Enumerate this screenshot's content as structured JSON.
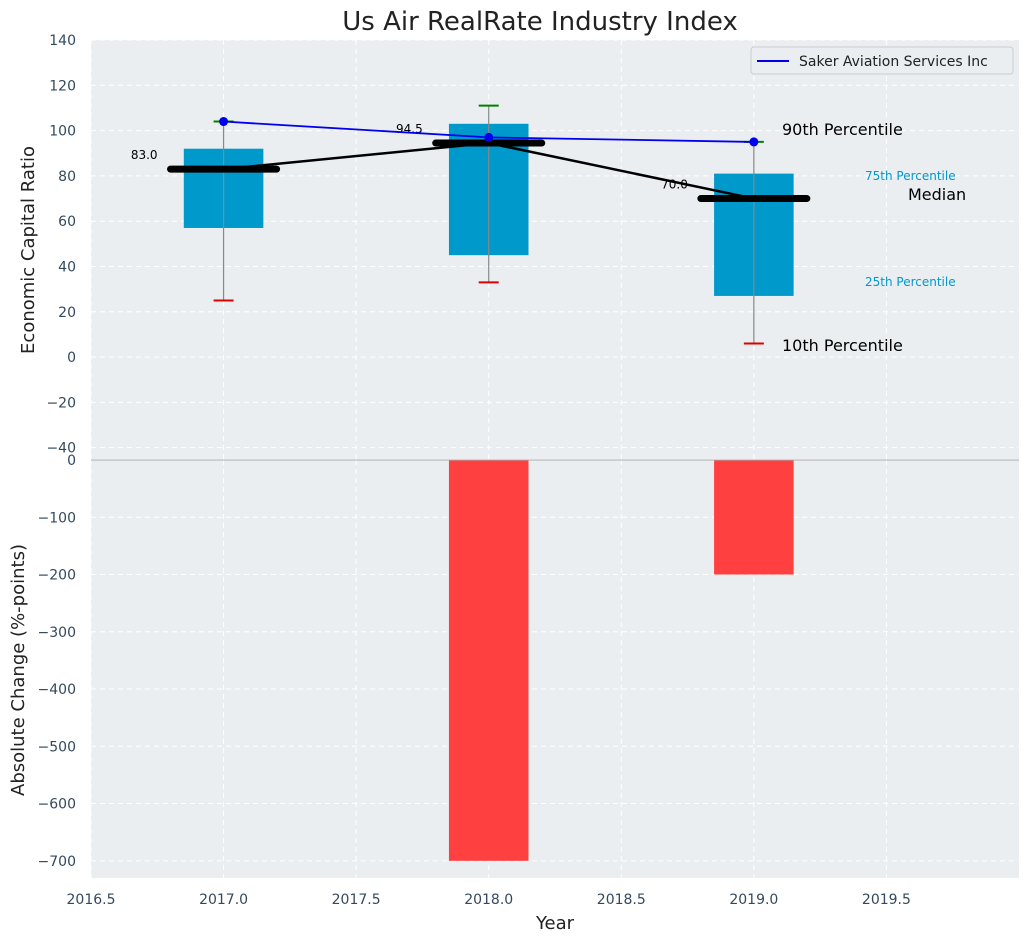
{
  "chart_data": [
    {
      "type": "box-range",
      "title": "Us Air RealRate Industry Index",
      "ylabel": "Economic Capital Ratio",
      "xlim": [
        2016.5,
        2020.0
      ],
      "ylim": [
        -45,
        140
      ],
      "yticks": [
        -40,
        -20,
        0,
        20,
        40,
        60,
        80,
        100,
        120,
        140
      ],
      "categories": [
        2017,
        2018,
        2019
      ],
      "percentile_10": [
        25,
        33,
        6
      ],
      "percentile_25": [
        57,
        45,
        27
      ],
      "median": [
        83.0,
        94.5,
        70.0
      ],
      "percentile_75": [
        92,
        103,
        81
      ],
      "percentile_90": [
        104,
        111,
        95
      ],
      "median_labels": [
        "83.0",
        "94.5",
        "70.0"
      ],
      "series": [
        {
          "name": "Saker Aviation Services Inc",
          "x": [
            2017,
            2018,
            2019
          ],
          "values": [
            104,
            97,
            95
          ],
          "color": "#0000ee"
        }
      ],
      "legend": {
        "position": "top-right",
        "entries": [
          "Saker Aviation Services Inc"
        ]
      },
      "annotations": {
        "p90": "90th Percentile",
        "p75": "75th Percentile",
        "median": "Median",
        "p25": "25th Percentile",
        "p10": "10th Percentile"
      },
      "colors": {
        "box": "#0099cc",
        "median": "#000000",
        "p90_cap": "#008000",
        "p10_cap": "#dd0000",
        "whisker": "#888888",
        "background": "#eaeef0"
      }
    },
    {
      "type": "bar",
      "ylabel": "Absolute Change (%-points)",
      "xlabel": "Year",
      "xlim": [
        2016.5,
        2020.0
      ],
      "ylim": [
        -730,
        0
      ],
      "xticks": [
        "2016.5",
        "2017.0",
        "2017.5",
        "2018.0",
        "2018.5",
        "2019.0",
        "2019.5"
      ],
      "yticks": [
        0,
        -100,
        -200,
        -300,
        -400,
        -500,
        -600,
        -700
      ],
      "x": [
        2018,
        2019
      ],
      "values": [
        -700,
        -200
      ],
      "color": "#ff4040"
    }
  ]
}
